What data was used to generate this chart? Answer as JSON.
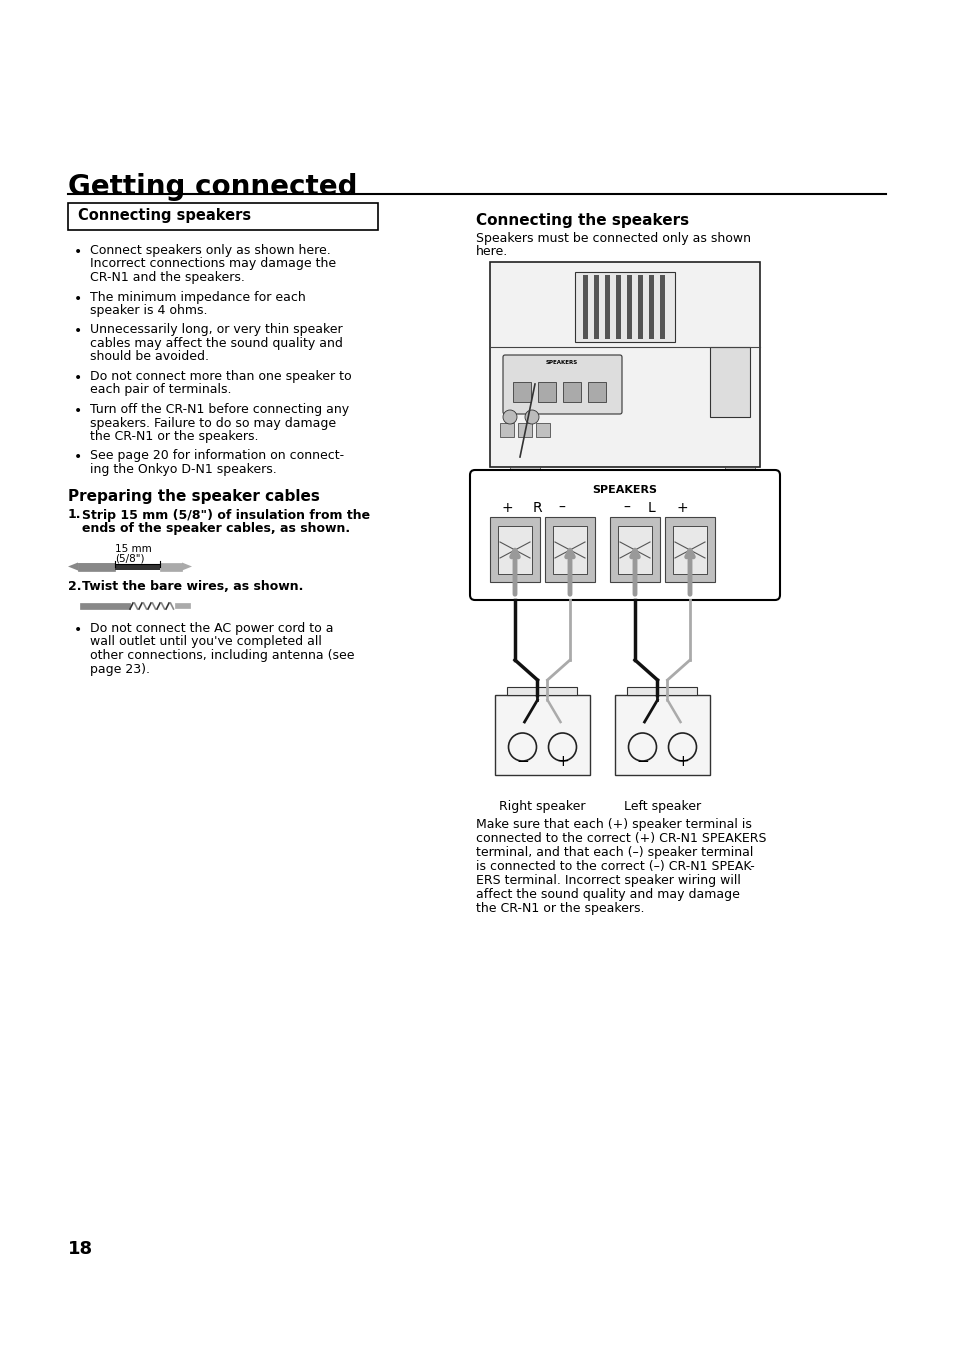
{
  "bg_color": "#ffffff",
  "page_number": "18",
  "main_title": "Getting connected",
  "left_box_title": "Connecting speakers",
  "right_section_title": "Connecting the speakers",
  "right_intro": "Speakers must be connected only as shown\nhere.",
  "bullet_points": [
    "Connect speakers only as shown here.\nIncorrect connections may damage the\nCR-N1 and the speakers.",
    "The minimum impedance for each\nspeaker is 4 ohms.",
    "Unnecessarily long, or very thin speaker\ncables may affect the sound quality and\nshould be avoided.",
    "Do not connect more than one speaker to\neach pair of terminals.",
    "Turn off the CR-N1 before connecting any\nspeakers. Failure to do so may damage\nthe CR-N1 or the speakers.",
    "See page 20 for information on connect-\ning the Onkyo D-N1 speakers."
  ],
  "prep_title": "Preparing the speaker cables",
  "step1_bold": "Strip 15 mm (5/8\") of insulation from the\nends of the speaker cables, as shown.",
  "step1_dim_top": "15 mm",
  "step1_dim_bot": "(5/8\")",
  "step2_bold": "Twist the bare wires, as shown.",
  "note_bullet": "Do not connect the AC power cord to a\nwall outlet until you've completed all\nother connections, including antenna (see\npage 23).",
  "speakers_label": "SPEAKERS",
  "speakers_terminals_parts": [
    "+",
    "R",
    "–",
    "–",
    "L",
    "+"
  ],
  "right_label": "Right speaker",
  "left_label": "Left speaker",
  "bottom_text": "Make sure that each (+) speaker terminal is\nconnected to the correct (+) CR-N1 SPEAKERS\nterminal, and that each (–) speaker terminal\nis connected to the correct (–) CR-N1 SPEAK-\nERS terminal. Incorrect speaker wiring will\naffect the sound quality and may damage\nthe CR-N1 or the speakers."
}
